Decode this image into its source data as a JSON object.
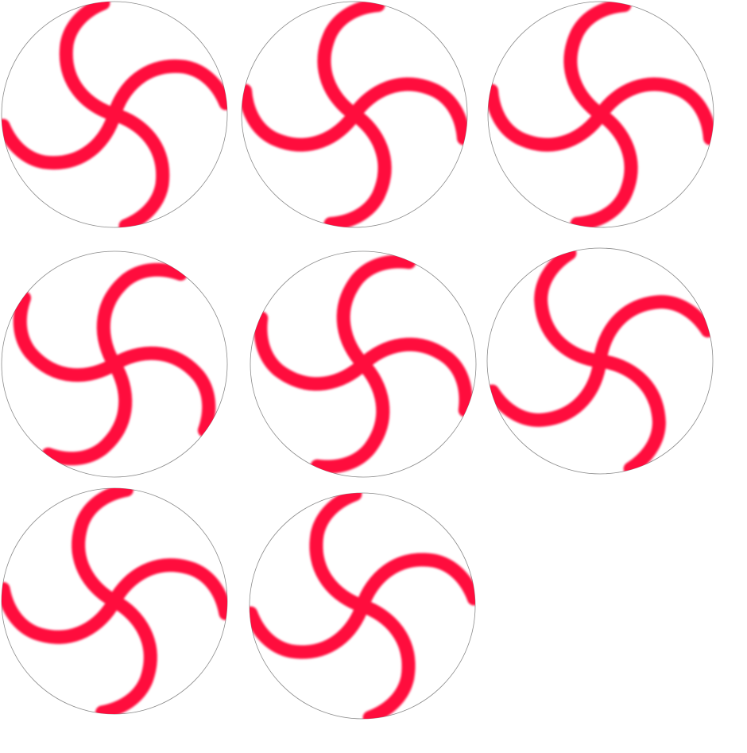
{
  "colors": {
    "stroke": "#ff0a3c",
    "rim": "#8a8a8a",
    "background": "#ffffff"
  },
  "tiles": [
    {
      "id": 1,
      "icon": "pinwheel-icon",
      "rotation_deg": 0
    },
    {
      "id": 2,
      "icon": "pinwheel-icon",
      "rotation_deg": -72
    },
    {
      "id": 3,
      "icon": "pinwheel-icon",
      "rotation_deg": 18
    },
    {
      "id": 4,
      "icon": "pinwheel-icon",
      "rotation_deg": -48
    },
    {
      "id": 5,
      "icon": "pinwheel-icon",
      "rotation_deg": 30
    },
    {
      "id": 6,
      "icon": "pinwheel-icon",
      "rotation_deg": -100
    },
    {
      "id": 7,
      "icon": "pinwheel-icon",
      "rotation_deg": 12
    },
    {
      "id": 8,
      "icon": "pinwheel-icon",
      "rotation_deg": -88
    }
  ]
}
